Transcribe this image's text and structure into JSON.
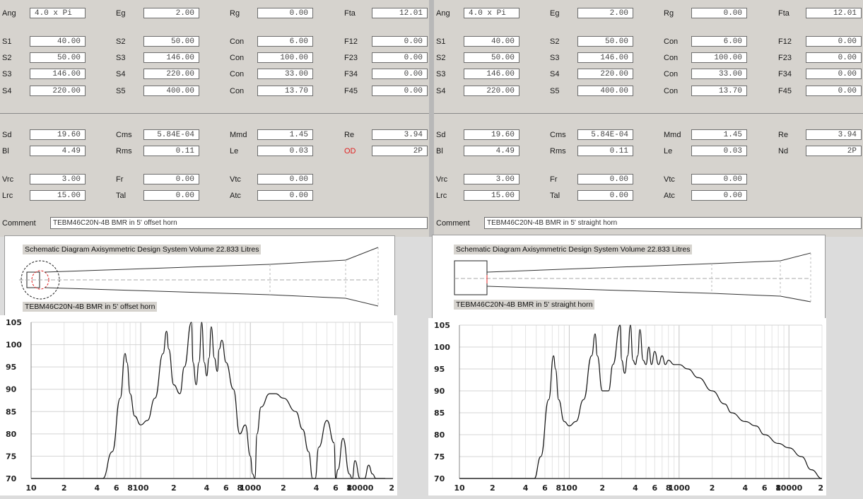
{
  "left": {
    "rows": [
      [
        [
          "Ang",
          "4.0 x Pi"
        ],
        [
          "Eg",
          "2.00"
        ],
        [
          "Rg",
          "0.00"
        ],
        [
          "Fta",
          "12.01"
        ]
      ],
      [
        [
          "S1",
          "40.00"
        ],
        [
          "S2",
          "50.00"
        ],
        [
          "Con",
          "6.00"
        ],
        [
          "F12",
          "0.00"
        ]
      ],
      [
        [
          "S2",
          "50.00"
        ],
        [
          "S3",
          "146.00"
        ],
        [
          "Con",
          "100.00"
        ],
        [
          "F23",
          "0.00"
        ]
      ],
      [
        [
          "S3",
          "146.00"
        ],
        [
          "S4",
          "220.00"
        ],
        [
          "Con",
          "33.00"
        ],
        [
          "F34",
          "0.00"
        ]
      ],
      [
        [
          "S4",
          "220.00"
        ],
        [
          "S5",
          "400.00"
        ],
        [
          "Con",
          "13.70"
        ],
        [
          "F45",
          "0.00"
        ]
      ],
      [
        [
          "Sd",
          "19.60"
        ],
        [
          "Cms",
          "5.84E-04"
        ],
        [
          "Mmd",
          "1.45"
        ],
        [
          "Re",
          "3.94"
        ]
      ],
      [
        [
          "Bl",
          "4.49"
        ],
        [
          "Rms",
          "0.11"
        ],
        [
          "Le",
          "0.03"
        ],
        [
          "OD",
          "2P"
        ]
      ],
      [
        [
          "Vrc",
          "3.00"
        ],
        [
          "Fr",
          "0.00"
        ],
        [
          "Vtc",
          "0.00"
        ]
      ],
      [
        [
          "Lrc",
          "15.00"
        ],
        [
          "Tal",
          "0.00"
        ],
        [
          "Atc",
          "0.00"
        ]
      ]
    ],
    "comment_label": "Comment",
    "comment": "TEBM46C20N-4B BMR in 5' offset horn",
    "schematic_title": "Schematic Diagram   Axisymmetric Design   System Volume 22.833 Litres",
    "schematic_caption": "TEBM46C20N-4B BMR in 5' offset horn"
  },
  "right": {
    "rows": [
      [
        [
          "Ang",
          "4.0 x Pi"
        ],
        [
          "Eg",
          "2.00"
        ],
        [
          "Rg",
          "0.00"
        ],
        [
          "Fta",
          "12.01"
        ]
      ],
      [
        [
          "S1",
          "40.00"
        ],
        [
          "S2",
          "50.00"
        ],
        [
          "Con",
          "6.00"
        ],
        [
          "F12",
          "0.00"
        ]
      ],
      [
        [
          "S2",
          "50.00"
        ],
        [
          "S3",
          "146.00"
        ],
        [
          "Con",
          "100.00"
        ],
        [
          "F23",
          "0.00"
        ]
      ],
      [
        [
          "S3",
          "146.00"
        ],
        [
          "S4",
          "220.00"
        ],
        [
          "Con",
          "33.00"
        ],
        [
          "F34",
          "0.00"
        ]
      ],
      [
        [
          "S4",
          "220.00"
        ],
        [
          "S5",
          "400.00"
        ],
        [
          "Con",
          "13.70"
        ],
        [
          "F45",
          "0.00"
        ]
      ],
      [
        [
          "Sd",
          "19.60"
        ],
        [
          "Cms",
          "5.84E-04"
        ],
        [
          "Mmd",
          "1.45"
        ],
        [
          "Re",
          "3.94"
        ]
      ],
      [
        [
          "Bl",
          "4.49"
        ],
        [
          "Rms",
          "0.11"
        ],
        [
          "Le",
          "0.03"
        ],
        [
          "Nd",
          "2P"
        ]
      ],
      [
        [
          "Vrc",
          "3.00"
        ],
        [
          "Fr",
          "0.00"
        ],
        [
          "Vtc",
          "0.00"
        ]
      ],
      [
        [
          "Lrc",
          "15.00"
        ],
        [
          "Tal",
          "0.00"
        ],
        [
          "Atc",
          "0.00"
        ]
      ]
    ],
    "comment_label": "Comment",
    "comment": "TEBM46C20N-4B BMR in 5'  straight horn",
    "schematic_title": "Schematic Diagram   Axisymmetric Design   System Volume 22.833 Litres",
    "schematic_caption": "TEBM46C20N-4B BMR in 5'  straight horn"
  },
  "colors": {
    "od_label": "#e02020",
    "panel": "#d6d3ce"
  },
  "chart_data": [
    {
      "type": "line",
      "title": "",
      "xlabel": "",
      "ylabel": "",
      "xscale": "log",
      "xlim": [
        10,
        20000
      ],
      "ylim": [
        70,
        105
      ],
      "x_tick_labels": [
        "10",
        "2",
        "4",
        "6",
        "8",
        "100",
        "2",
        "4",
        "6",
        "8",
        "1000",
        "2",
        "4",
        "6",
        "8",
        "10000",
        "2"
      ],
      "y_tick_labels": [
        "105",
        "100",
        "95",
        "90",
        "85",
        "80",
        "75",
        "70"
      ],
      "grid": true,
      "series": [
        {
          "x": [
            10,
            45,
            55,
            65,
            72,
            75,
            80,
            88,
            100,
            115,
            135,
            160,
            172,
            180,
            200,
            228,
            250,
            290,
            300,
            320,
            340,
            360,
            380,
            400,
            420,
            440,
            470,
            500,
            520,
            550,
            600,
            700,
            800,
            900,
            1000,
            1050,
            1100,
            1150,
            1250,
            1500,
            1700,
            2000,
            2600,
            3000,
            3400,
            3700,
            3900,
            4200,
            5000,
            5800,
            6000,
            6300,
            7000,
            8000,
            8500,
            9000,
            10000,
            11000,
            12000,
            13000,
            14000,
            14500,
            16000,
            17000
          ],
          "y": [
            70,
            70,
            76,
            88,
            98,
            96,
            89,
            84,
            82,
            83,
            88,
            98,
            103,
            99,
            91,
            89,
            95,
            105,
            96,
            91,
            96,
            105,
            96,
            93,
            97,
            104,
            97,
            94,
            99,
            101,
            96,
            90,
            80,
            82,
            75,
            71,
            70,
            80,
            86,
            89,
            89,
            88,
            85,
            81,
            76,
            70,
            70,
            77,
            83,
            78,
            70,
            72,
            79,
            71,
            70,
            74,
            70,
            70,
            73,
            71,
            70,
            70,
            70,
            70
          ]
        }
      ]
    },
    {
      "type": "line",
      "title": "",
      "xlabel": "",
      "ylabel": "",
      "xscale": "log",
      "xlim": [
        10,
        20000
      ],
      "ylim": [
        70,
        105
      ],
      "x_tick_labels": [
        "10",
        "2",
        "4",
        "6",
        "8",
        "100",
        "2",
        "4",
        "6",
        "8",
        "1000",
        "2",
        "4",
        "6",
        "8",
        "10000",
        "2"
      ],
      "y_tick_labels": [
        "105",
        "100",
        "95",
        "90",
        "85",
        "80",
        "75",
        "70"
      ],
      "grid": true,
      "series": [
        {
          "x": [
            10,
            48,
            55,
            65,
            72,
            75,
            80,
            90,
            100,
            115,
            135,
            160,
            172,
            180,
            200,
            228,
            250,
            290,
            300,
            320,
            340,
            360,
            380,
            400,
            420,
            440,
            470,
            500,
            530,
            560,
            600,
            650,
            700,
            750,
            800,
            900,
            1000,
            1200,
            1500,
            2000,
            2600,
            3000,
            4000,
            5000,
            6000,
            8000,
            10000,
            13000,
            16000,
            20000
          ],
          "y": [
            70,
            70,
            75,
            88,
            98,
            95,
            88,
            83,
            82,
            83,
            88,
            98,
            103,
            98,
            90,
            90,
            96,
            105,
            97,
            94,
            98,
            105,
            97,
            96,
            98,
            104,
            97,
            96,
            100,
            96,
            99,
            96,
            98,
            96,
            97,
            96,
            96,
            95,
            93,
            90,
            87,
            85,
            83,
            82,
            80,
            78,
            77,
            75,
            72,
            70
          ]
        }
      ]
    }
  ]
}
